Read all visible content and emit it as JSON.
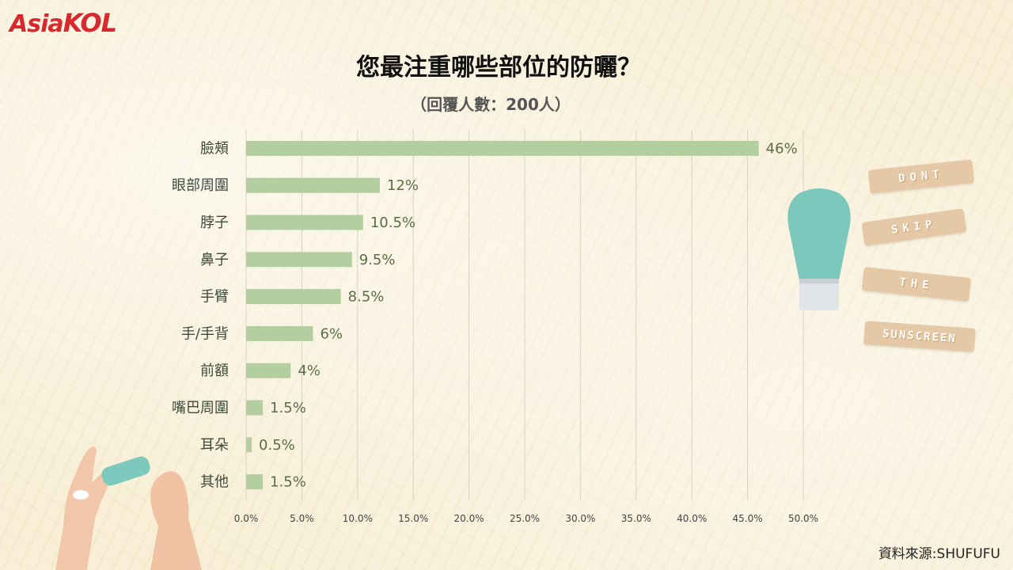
{
  "brand": {
    "logo_text_a": "Asia",
    "logo_text_b": "KOL"
  },
  "header": {
    "title": "您最注重哪些部位的防曬？",
    "subtitle": "（回覆人數：200人）"
  },
  "chart_data": {
    "type": "bar",
    "orientation": "horizontal",
    "title": "您最注重哪些部位的防曬？",
    "subtitle": "（回覆人數：200人）",
    "categories": [
      "臉頰",
      "眼部周圍",
      "脖子",
      "鼻子",
      "手臂",
      "手/手背",
      "前額",
      "嘴巴周圍",
      "耳朵",
      "其他"
    ],
    "values": [
      46,
      12,
      10.5,
      9.5,
      8.5,
      6,
      4,
      1.5,
      0.5,
      1.5
    ],
    "value_labels": [
      "46%",
      "12%",
      "10.5%",
      "9.5%",
      "8.5%",
      "6%",
      "4%",
      "1.5%",
      "0.5%",
      "1.5%"
    ],
    "xlim": [
      0,
      50
    ],
    "xticks": [
      0,
      5,
      10,
      15,
      20,
      25,
      30,
      35,
      40,
      45,
      50
    ],
    "xtick_labels": [
      "0.0%",
      "5.0%",
      "10.0%",
      "15.0%",
      "20.0%",
      "25.0%",
      "30.0%",
      "35.0%",
      "40.0%",
      "45.0%",
      "50.0%"
    ],
    "grid": "vertical",
    "bar_color": "#b3cfa0",
    "label_color": "#5a6e45"
  },
  "decor": {
    "ribbons": [
      "DONT",
      "SKIP",
      "THE",
      "SUNSCREEN"
    ],
    "bottle_color": "#7cc8bd",
    "cap_color": "#dfe4e6"
  },
  "footer": {
    "source": "資料來源:SHUFUFU"
  }
}
